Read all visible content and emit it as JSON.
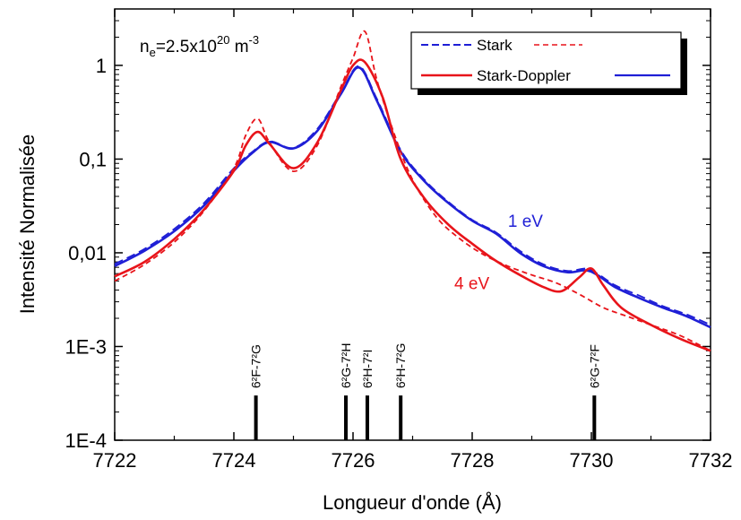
{
  "chart_data": {
    "type": "line",
    "title": "",
    "xlabel": "Longueur d'onde (Å)",
    "ylabel": "Intensité Normalisée",
    "xlim": [
      7722,
      7732
    ],
    "ylim": [
      0.0001,
      4
    ],
    "y_scale": "log",
    "grid": false,
    "x_ticks": [
      7722,
      7724,
      7726,
      7728,
      7730,
      7732
    ],
    "x_tick_labels": [
      "7722",
      "7724",
      "7726",
      "7728",
      "7730",
      "7732"
    ],
    "y_ticks": [
      0.0001,
      0.001,
      0.01,
      0.1,
      1
    ],
    "y_tick_labels": [
      "1E-4",
      "1E-3",
      "0,01",
      "0,1",
      "1"
    ],
    "density_label": {
      "prefix": "n",
      "sub": "e",
      "mid": "=2.5x10",
      "sup": "20",
      "suffix": " m",
      "sup2": "-3"
    },
    "legend": {
      "placement": "top-right",
      "columns": [
        "Stark",
        "Stark-Doppler"
      ],
      "rows": [
        {
          "label": "Stark",
          "left": {
            "color": "#1f1fd6",
            "dash": "dashed"
          },
          "right": {
            "color": "#e8141a",
            "dash": "dashed"
          }
        },
        {
          "label": "Stark-Doppler",
          "left": {
            "color": "#e8141a",
            "dash": "solid"
          },
          "right": {
            "color": "#1f1fd6",
            "dash": "solid"
          }
        }
      ]
    },
    "annotations": [
      {
        "text": "1 eV",
        "color": "#1f1fd6",
        "x": 7728.6,
        "y": 0.019
      },
      {
        "text": "4 eV",
        "color": "#e8141a",
        "x": 7727.7,
        "y": 0.0041
      }
    ],
    "colors": {
      "blue": "#1f1fd6",
      "red": "#e8141a"
    },
    "series": [
      {
        "name": "Stark-Doppler",
        "temperature": "1 eV",
        "color": "#1f1fd6",
        "dash": "solid",
        "x": [
          7722.0,
          7722.5,
          7723.0,
          7723.5,
          7724.0,
          7724.3,
          7724.6,
          7725.0,
          7725.4,
          7725.8,
          7726.1,
          7726.4,
          7726.8,
          7727.2,
          7727.6,
          7728.0,
          7728.4,
          7728.8,
          7729.2,
          7729.6,
          7729.9,
          7730.1,
          7730.4,
          7730.8,
          7731.2,
          7731.6,
          7732.0
        ],
        "y": [
          0.0072,
          0.0105,
          0.017,
          0.032,
          0.075,
          0.115,
          0.152,
          0.13,
          0.2,
          0.5,
          0.95,
          0.42,
          0.12,
          0.058,
          0.034,
          0.022,
          0.016,
          0.01,
          0.0072,
          0.0062,
          0.0065,
          0.0058,
          0.0043,
          0.0033,
          0.0026,
          0.0021,
          0.0016
        ]
      },
      {
        "name": "Stark",
        "temperature": "1 eV",
        "color": "#1f1fd6",
        "dash": "dashed",
        "x": [
          7722.0,
          7722.5,
          7723.0,
          7723.5,
          7724.0,
          7724.3,
          7724.6,
          7725.0,
          7725.4,
          7725.8,
          7726.1,
          7726.4,
          7726.8,
          7727.2,
          7727.6,
          7728.0,
          7728.4,
          7728.8,
          7729.2,
          7729.6,
          7729.9,
          7730.1,
          7730.4,
          7730.8,
          7731.2,
          7731.6,
          7732.0
        ],
        "y": [
          0.0076,
          0.011,
          0.018,
          0.034,
          0.08,
          0.118,
          0.155,
          0.132,
          0.21,
          0.52,
          0.98,
          0.44,
          0.125,
          0.06,
          0.035,
          0.0225,
          0.0165,
          0.0105,
          0.0075,
          0.0064,
          0.0068,
          0.006,
          0.0045,
          0.0035,
          0.0027,
          0.0022,
          0.0017
        ]
      },
      {
        "name": "Stark-Doppler",
        "temperature": "4 eV",
        "color": "#e8141a",
        "dash": "solid",
        "x": [
          7722.0,
          7722.5,
          7723.0,
          7723.5,
          7724.0,
          7724.2,
          7724.4,
          7724.6,
          7725.0,
          7725.4,
          7725.8,
          7726.0,
          7726.2,
          7726.5,
          7726.8,
          7727.2,
          7727.6,
          7728.0,
          7728.4,
          7728.8,
          7729.2,
          7729.5,
          7729.8,
          7730.0,
          7730.2,
          7730.5,
          7731.0,
          7731.5,
          7732.0
        ],
        "y": [
          0.0056,
          0.008,
          0.014,
          0.029,
          0.075,
          0.14,
          0.195,
          0.145,
          0.08,
          0.15,
          0.55,
          1.0,
          1.08,
          0.45,
          0.1,
          0.038,
          0.02,
          0.0125,
          0.0082,
          0.0058,
          0.0043,
          0.0039,
          0.0055,
          0.0068,
          0.0045,
          0.0026,
          0.0017,
          0.0012,
          0.0009
        ]
      },
      {
        "name": "Stark",
        "temperature": "4 eV",
        "color": "#e8141a",
        "dash": "dashed",
        "x": [
          7722.0,
          7722.5,
          7723.0,
          7723.5,
          7724.0,
          7724.2,
          7724.4,
          7724.6,
          7725.0,
          7725.4,
          7725.8,
          7726.0,
          7726.2,
          7726.4,
          7726.7,
          7727.0,
          7727.4,
          7727.8,
          7728.2,
          7728.6,
          7729.0,
          7729.4,
          7729.8,
          7730.2,
          7730.6,
          7731.0,
          7731.5,
          7732.0
        ],
        "y": [
          0.005,
          0.0075,
          0.013,
          0.028,
          0.08,
          0.18,
          0.27,
          0.15,
          0.074,
          0.14,
          0.6,
          1.2,
          2.3,
          0.7,
          0.18,
          0.06,
          0.024,
          0.014,
          0.0095,
          0.0072,
          0.0058,
          0.0048,
          0.0036,
          0.0026,
          0.0021,
          0.0017,
          0.0013,
          0.0009
        ]
      }
    ],
    "spectral_lines": [
      {
        "x": 7724.37,
        "label": "6²F-7²G",
        "height": 0.0003
      },
      {
        "x": 7725.88,
        "label": "6²G-7²H",
        "height": 0.0003
      },
      {
        "x": 7726.24,
        "label": "6²H-7²I",
        "height": 0.0003
      },
      {
        "x": 7726.8,
        "label": "6²H-7²G",
        "height": 0.0003
      },
      {
        "x": 7730.05,
        "label": "6²G-7²F",
        "height": 0.0003
      }
    ]
  }
}
